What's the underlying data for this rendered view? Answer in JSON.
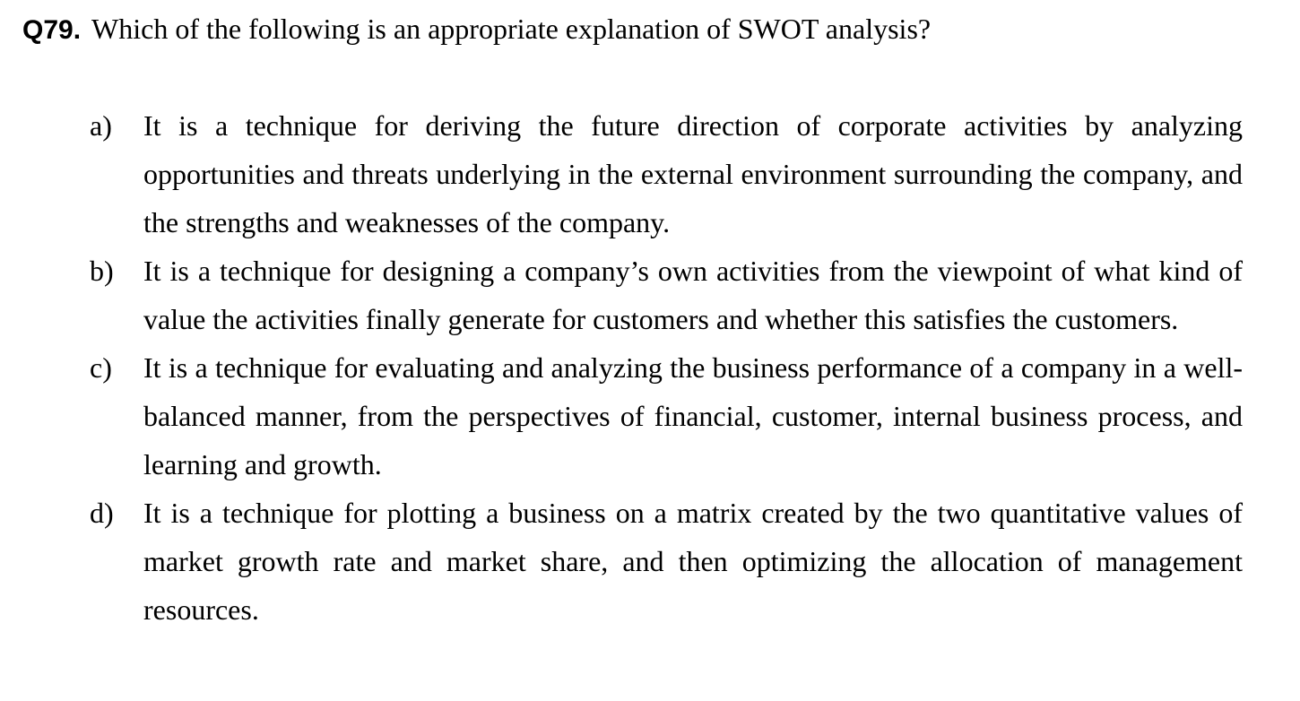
{
  "question": {
    "number": "Q79.",
    "text": "Which of the following is an appropriate explanation of SWOT analysis?"
  },
  "options": [
    {
      "letter": "a)",
      "text": "It is a technique for deriving the future direction of corporate activities by analyzing opportunities and threats underlying in the external environment surrounding the company, and the strengths and weaknesses of the company."
    },
    {
      "letter": "b)",
      "text": "It is a technique for designing a company’s own activities from the viewpoint of what kind of value the activities finally generate for customers and whether this satisfies the customers."
    },
    {
      "letter": "c)",
      "text": "It is a technique for evaluating and analyzing the business performance of a company in a well-balanced manner, from the perspectives of financial, customer, internal business process, and learning and growth."
    },
    {
      "letter": "d)",
      "text": "It is a technique for plotting a business on a matrix created by the two quantitative values of market growth rate and market share, and then optimizing the allocation of management resources."
    }
  ]
}
